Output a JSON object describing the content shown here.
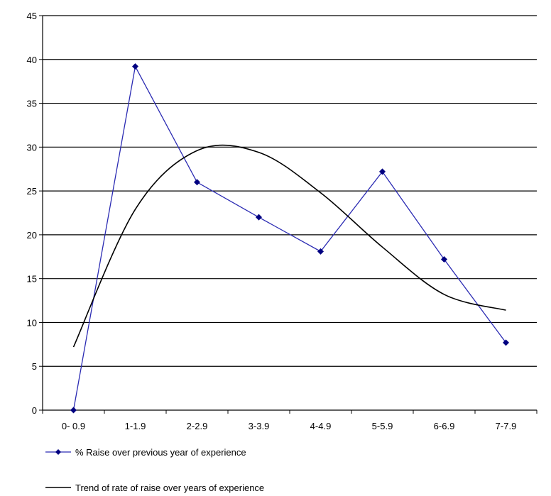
{
  "chart_data": {
    "type": "line",
    "categories": [
      "0- 0.9",
      "1-1.9",
      "2-2.9",
      "3-3.9",
      "4-4.9",
      "5-5.9",
      "6-6.9",
      "7-7.9"
    ],
    "ylim": [
      0,
      45
    ],
    "yticks": [
      0,
      5,
      10,
      15,
      20,
      25,
      30,
      35,
      40,
      45
    ],
    "grid": true,
    "legend_position": "bottom-left",
    "series": [
      {
        "name": "% Raise over previous year of experience",
        "values": [
          0,
          39.2,
          26.0,
          22.0,
          18.1,
          27.2,
          17.2,
          7.7
        ],
        "color": "#2b2bb3",
        "marker": "diamond",
        "marker_color": "#000080"
      },
      {
        "name": "Trend of rate of raise over years of experience",
        "values": [
          7.2,
          22.9,
          29.6,
          29.4,
          24.8,
          18.6,
          13.2,
          11.4
        ],
        "color": "#000000",
        "smooth": true
      }
    ]
  }
}
